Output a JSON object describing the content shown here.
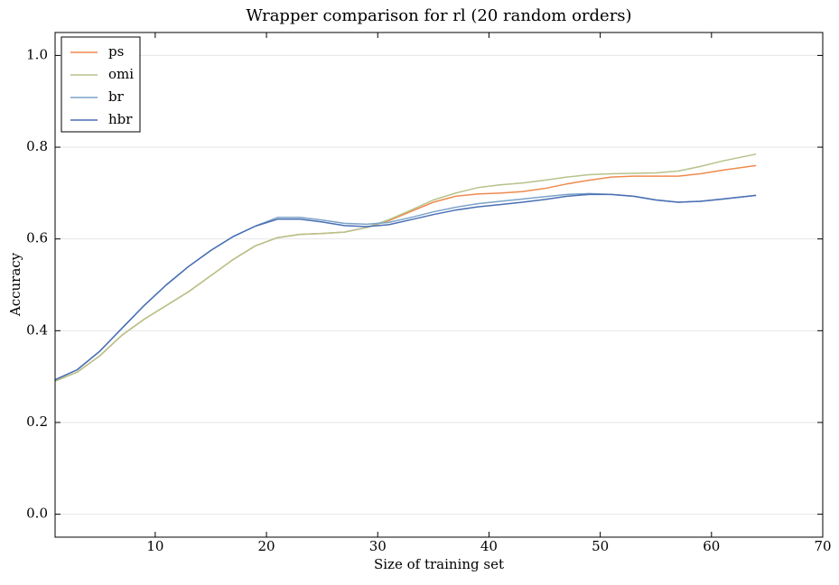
{
  "chart_data": {
    "type": "line",
    "title": "Wrapper comparison for rl (20 random orders)",
    "x_label": "Size of training set",
    "y_label": "Accuracy",
    "x": [
      1,
      3,
      5,
      7,
      9,
      11,
      13,
      15,
      17,
      19,
      21,
      23,
      25,
      27,
      29,
      31,
      33,
      35,
      37,
      39,
      41,
      43,
      45,
      47,
      49,
      51,
      53,
      55,
      57,
      59,
      61,
      64
    ],
    "series": [
      {
        "name": "ps",
        "color": "#ef8a4f",
        "values": [
          0.29,
          0.31,
          0.345,
          0.39,
          0.425,
          0.455,
          0.485,
          0.52,
          0.555,
          0.585,
          0.603,
          0.61,
          0.612,
          0.615,
          0.625,
          0.64,
          0.66,
          0.68,
          0.693,
          0.698,
          0.7,
          0.703,
          0.71,
          0.72,
          0.728,
          0.735,
          0.737,
          0.737,
          0.737,
          0.742,
          0.75,
          0.76
        ]
      },
      {
        "name": "omi",
        "color": "#b5c38a",
        "values": [
          0.29,
          0.31,
          0.345,
          0.39,
          0.425,
          0.455,
          0.485,
          0.52,
          0.555,
          0.585,
          0.603,
          0.61,
          0.612,
          0.615,
          0.625,
          0.642,
          0.663,
          0.685,
          0.7,
          0.712,
          0.718,
          0.722,
          0.728,
          0.735,
          0.74,
          0.742,
          0.743,
          0.744,
          0.748,
          0.758,
          0.77,
          0.785
        ]
      },
      {
        "name": "br",
        "color": "#7ba3c8",
        "values": [
          0.293,
          0.315,
          0.355,
          0.405,
          0.455,
          0.5,
          0.54,
          0.575,
          0.605,
          0.628,
          0.647,
          0.647,
          0.641,
          0.634,
          0.632,
          0.636,
          0.647,
          0.659,
          0.669,
          0.677,
          0.682,
          0.687,
          0.692,
          0.697,
          0.699,
          0.697,
          0.693,
          0.685,
          0.68,
          0.682,
          0.687,
          0.695
        ]
      },
      {
        "name": "hbr",
        "color": "#4a6fb5",
        "values": [
          0.293,
          0.315,
          0.355,
          0.405,
          0.455,
          0.5,
          0.54,
          0.575,
          0.605,
          0.628,
          0.643,
          0.643,
          0.637,
          0.629,
          0.627,
          0.631,
          0.642,
          0.653,
          0.663,
          0.67,
          0.675,
          0.68,
          0.686,
          0.693,
          0.697,
          0.697,
          0.693,
          0.685,
          0.68,
          0.682,
          0.687,
          0.695
        ]
      }
    ],
    "xlim": [
      1,
      70
    ],
    "xticks": [
      10,
      20,
      30,
      40,
      50,
      60,
      70
    ],
    "ylim": [
      -0.05,
      1.05
    ],
    "yticks": [
      {
        "value": 0,
        "label": "0.0"
      },
      {
        "value": 0.2,
        "label": "0.2"
      },
      {
        "value": 0.4,
        "label": "0.4"
      },
      {
        "value": 0.6,
        "label": "0.6"
      },
      {
        "value": 0.8,
        "label": "0.8"
      },
      {
        "value": 1,
        "label": "1.0"
      }
    ],
    "grid": true,
    "legend": "upper left"
  }
}
